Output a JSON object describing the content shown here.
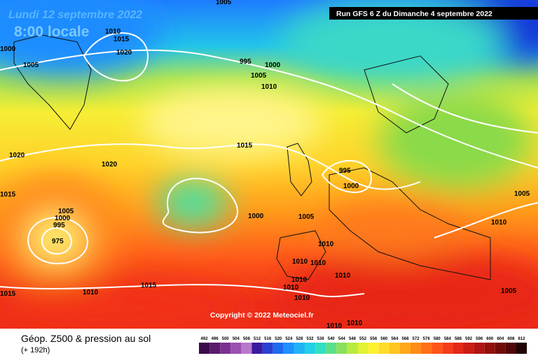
{
  "header": {
    "date": "Lundi 12 septembre 2022",
    "time": "8:00 locale",
    "run": "Run GFS 6 Z du Dimanche 4 septembre 2022"
  },
  "isobar_labels": [
    1010,
    1015,
    1020,
    1000,
    1005,
    1005,
    995,
    1000,
    1005,
    1010,
    1015,
    1020,
    1020,
    1015,
    1005,
    1000,
    995,
    975,
    1000,
    1005,
    995,
    1000,
    1010,
    1010,
    1010,
    1010,
    1010,
    1010,
    1010,
    1010,
    1015,
    1015,
    1010,
    1010,
    1005,
    1010,
    1005
  ],
  "copyright": "Copyright © 2022 Meteociel.fr",
  "footer": {
    "title": "Géop. Z500 & pression au sol",
    "lead": "(+ 192h)"
  },
  "legend": {
    "labels": [
      492,
      496,
      500,
      504,
      508,
      512,
      516,
      520,
      524,
      528,
      532,
      536,
      540,
      544,
      548,
      552,
      556,
      560,
      564,
      568,
      572,
      576,
      580,
      584,
      588,
      592,
      596,
      600,
      604,
      608,
      612
    ],
    "colors": [
      "#3a0a4a",
      "#5a1a6e",
      "#7a3090",
      "#9a50b0",
      "#b878cc",
      "#3c1aa0",
      "#2a40d0",
      "#1e6af0",
      "#1e90ff",
      "#20b4f5",
      "#22d0e8",
      "#30e0c0",
      "#5ae08a",
      "#8ae05a",
      "#b8ea40",
      "#e0f230",
      "#fff030",
      "#ffdc28",
      "#ffc420",
      "#ffa818",
      "#ff8c18",
      "#ff7018",
      "#ff5418",
      "#f43c18",
      "#e42818",
      "#cc1c14",
      "#b01410",
      "#90100c",
      "#700c08",
      "#500806",
      "#200404"
    ]
  }
}
